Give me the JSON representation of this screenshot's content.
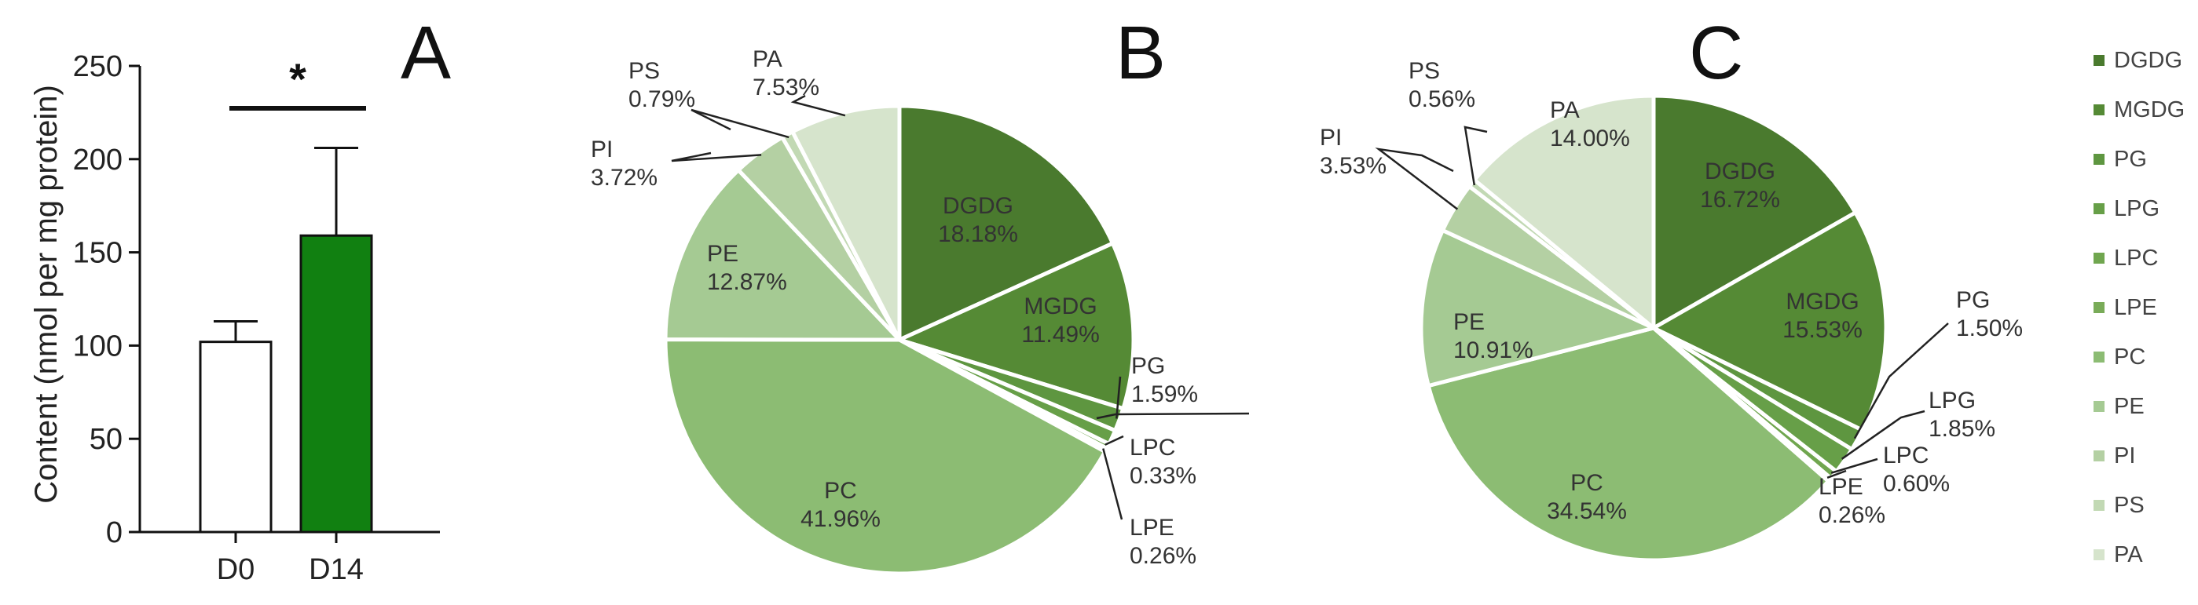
{
  "colors": {
    "DGDG": "#4a7a2e",
    "MGDG": "#558a35",
    "PG": "#5e9640",
    "LPG": "#679f48",
    "LPC": "#70a64f",
    "LPE": "#79ab58",
    "PC": "#8cbc73",
    "PE": "#a5ca93",
    "PI": "#b4d0a3",
    "PS": "#c2d9b4",
    "PA": "#d6e4cc",
    "bar_d0": "#ffffff",
    "bar_d14": "#118011"
  },
  "chart_data": [
    {
      "type": "bar",
      "panel": "A",
      "categories": [
        "D0",
        "D14"
      ],
      "values": [
        102,
        159
      ],
      "errors": [
        11,
        47
      ],
      "ylabel": "Content (nmol per mg protein)",
      "ylim": [
        0,
        250
      ],
      "yticks": [
        0,
        50,
        100,
        150,
        200,
        250
      ],
      "significance": "*",
      "grid": false
    },
    {
      "type": "pie",
      "panel": "B",
      "slices": [
        {
          "label": "DGDG",
          "value": 18.18,
          "text": "18.18%"
        },
        {
          "label": "MGDG",
          "value": 11.49,
          "text": "11.49%"
        },
        {
          "label": "PG",
          "value": 1.59,
          "text": "1.59%"
        },
        {
          "label": "LPG",
          "value": 1.0,
          "text": ""
        },
        {
          "label": "LPC",
          "value": 0.33,
          "text": "0.33%"
        },
        {
          "label": "LPE",
          "value": 0.26,
          "text": "0.26%"
        },
        {
          "label": "PC",
          "value": 41.96,
          "text": "41.96%"
        },
        {
          "label": "PE",
          "value": 12.87,
          "text": "12.87%"
        },
        {
          "label": "PI",
          "value": 3.72,
          "text": "3.72%"
        },
        {
          "label": "PS",
          "value": 0.79,
          "text": "0.79%"
        },
        {
          "label": "PA",
          "value": 7.53,
          "text": "7.53%"
        }
      ]
    },
    {
      "type": "pie",
      "panel": "C",
      "slices": [
        {
          "label": "DGDG",
          "value": 16.72,
          "text": "16.72%"
        },
        {
          "label": "MGDG",
          "value": 15.53,
          "text": "15.53%"
        },
        {
          "label": "PG",
          "value": 1.5,
          "text": "1.50%"
        },
        {
          "label": "LPG",
          "value": 1.85,
          "text": "1.85%"
        },
        {
          "label": "LPC",
          "value": 0.6,
          "text": "0.60%"
        },
        {
          "label": "LPE",
          "value": 0.26,
          "text": "0.26%"
        },
        {
          "label": "PC",
          "value": 34.54,
          "text": "34.54%"
        },
        {
          "label": "PE",
          "value": 10.91,
          "text": "10.91%"
        },
        {
          "label": "PI",
          "value": 3.53,
          "text": "3.53%"
        },
        {
          "label": "PS",
          "value": 0.56,
          "text": "0.56%"
        },
        {
          "label": "PA",
          "value": 14.0,
          "text": "14.00%"
        }
      ]
    }
  ],
  "legend": {
    "placement": "right",
    "items": [
      "DGDG",
      "MGDG",
      "PG",
      "LPG",
      "LPC",
      "LPE",
      "PC",
      "PE",
      "PI",
      "PS",
      "PA"
    ]
  }
}
